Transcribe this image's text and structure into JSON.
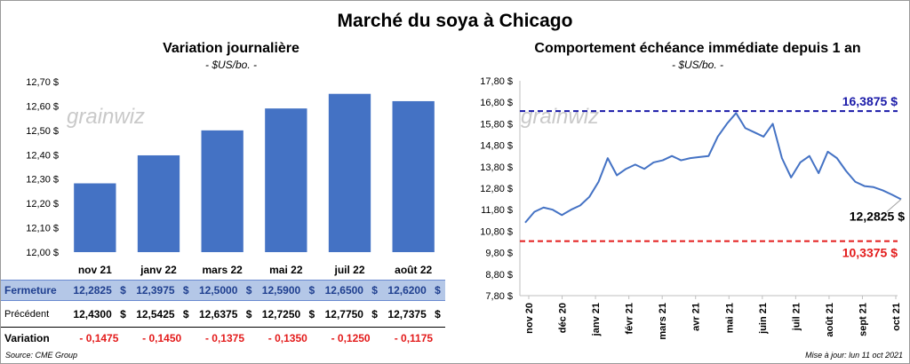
{
  "title": "Marché du soya à Chicago",
  "left": {
    "title": "Variation  journalière",
    "subtitle": "- $US/bo. -"
  },
  "right": {
    "title": "Comportement  échéance immédiate depuis 1 an",
    "subtitle": "- $US/bo. -"
  },
  "watermark": "grainwiz",
  "table": {
    "row_labels": {
      "close": "Fermeture",
      "prev": "Précédent",
      "var": "Variation"
    },
    "currency": "$",
    "close": [
      "12,2825",
      "12,3975",
      "12,5000",
      "12,5900",
      "12,6500",
      "12,6200"
    ],
    "prev": [
      "12,4300",
      "12,5425",
      "12,6375",
      "12,7250",
      "12,7750",
      "12,7375"
    ],
    "var": [
      "- 0,1475",
      "- 0,1450",
      "- 0,1375",
      "- 0,1350",
      "- 0,1250",
      "- 0,1175"
    ]
  },
  "footer": {
    "source": "Source: CME Group",
    "update": "Mise à jour: lun 11 oct 2021"
  },
  "colors": {
    "bar": "#4472c4",
    "line": "#4472c4",
    "high": "#1a1aa8",
    "low": "#e31b1b",
    "table_header": "#b4c7e7"
  },
  "chart_data": [
    {
      "type": "bar",
      "title": "Variation  journalière",
      "categories": [
        "nov 21",
        "janv 22",
        "mars 22",
        "mai 22",
        "juil 22",
        "août 22"
      ],
      "values": [
        12.2825,
        12.3975,
        12.5,
        12.59,
        12.65,
        12.62
      ],
      "ylim": [
        12.0,
        12.7
      ],
      "yticks": [
        "12,00 $",
        "12,10 $",
        "12,20 $",
        "12,30 $",
        "12,40 $",
        "12,50 $",
        "12,60 $",
        "12,70 $"
      ],
      "grid": false
    },
    {
      "type": "line",
      "title": "Comportement  échéance immédiate depuis 1 an",
      "ylim": [
        7.8,
        17.8
      ],
      "yticks": [
        "7,80 $",
        "8,80 $",
        "9,80 $",
        "10,80 $",
        "11,80 $",
        "12,80 $",
        "13,80 $",
        "14,80 $",
        "15,80 $",
        "16,80 $",
        "17,80 $"
      ],
      "xticks": [
        "nov 20",
        "déc 20",
        "janv 21",
        "févr 21",
        "mars 21",
        "avr 21",
        "mai 21",
        "juin 21",
        "juil 21",
        "août 21",
        "sept 21",
        "oct 21"
      ],
      "series": [
        {
          "x": [
            "nov 20",
            "nov 20",
            "nov 20",
            "nov 20",
            "déc 20",
            "déc 20",
            "déc 20",
            "déc 20",
            "janv 21",
            "janv 21",
            "janv 21",
            "janv 21",
            "févr 21",
            "févr 21",
            "févr 21",
            "mars 21",
            "mars 21",
            "mars 21",
            "mars 21",
            "avr 21",
            "avr 21",
            "avr 21",
            "mai 21",
            "mai 21",
            "mai 21",
            "mai 21",
            "juin 21",
            "juin 21",
            "juin 21",
            "juin 21",
            "juil 21",
            "juil 21",
            "juil 21",
            "août 21",
            "août 21",
            "août 21",
            "août 21",
            "sept 21",
            "sept 21",
            "sept 21",
            "oct 21",
            "oct 21"
          ],
          "values": [
            11.2,
            11.7,
            11.9,
            11.8,
            11.55,
            11.8,
            12.0,
            12.4,
            13.1,
            14.2,
            13.4,
            13.7,
            13.9,
            13.7,
            14.0,
            14.1,
            14.3,
            14.1,
            14.2,
            14.25,
            14.3,
            15.2,
            15.8,
            16.3,
            15.6,
            15.4,
            15.2,
            15.8,
            14.2,
            13.3,
            14.0,
            14.3,
            13.5,
            14.5,
            14.2,
            13.6,
            13.1,
            12.9,
            12.85,
            12.7,
            12.5,
            12.2825
          ]
        }
      ],
      "reference_lines": [
        {
          "label": "16,3875 $",
          "value": 16.3875
        },
        {
          "label": "10,3375 $",
          "value": 10.3375
        }
      ],
      "annotations": [
        {
          "label": "12,2825 $",
          "value": 12.2825
        }
      ]
    }
  ]
}
